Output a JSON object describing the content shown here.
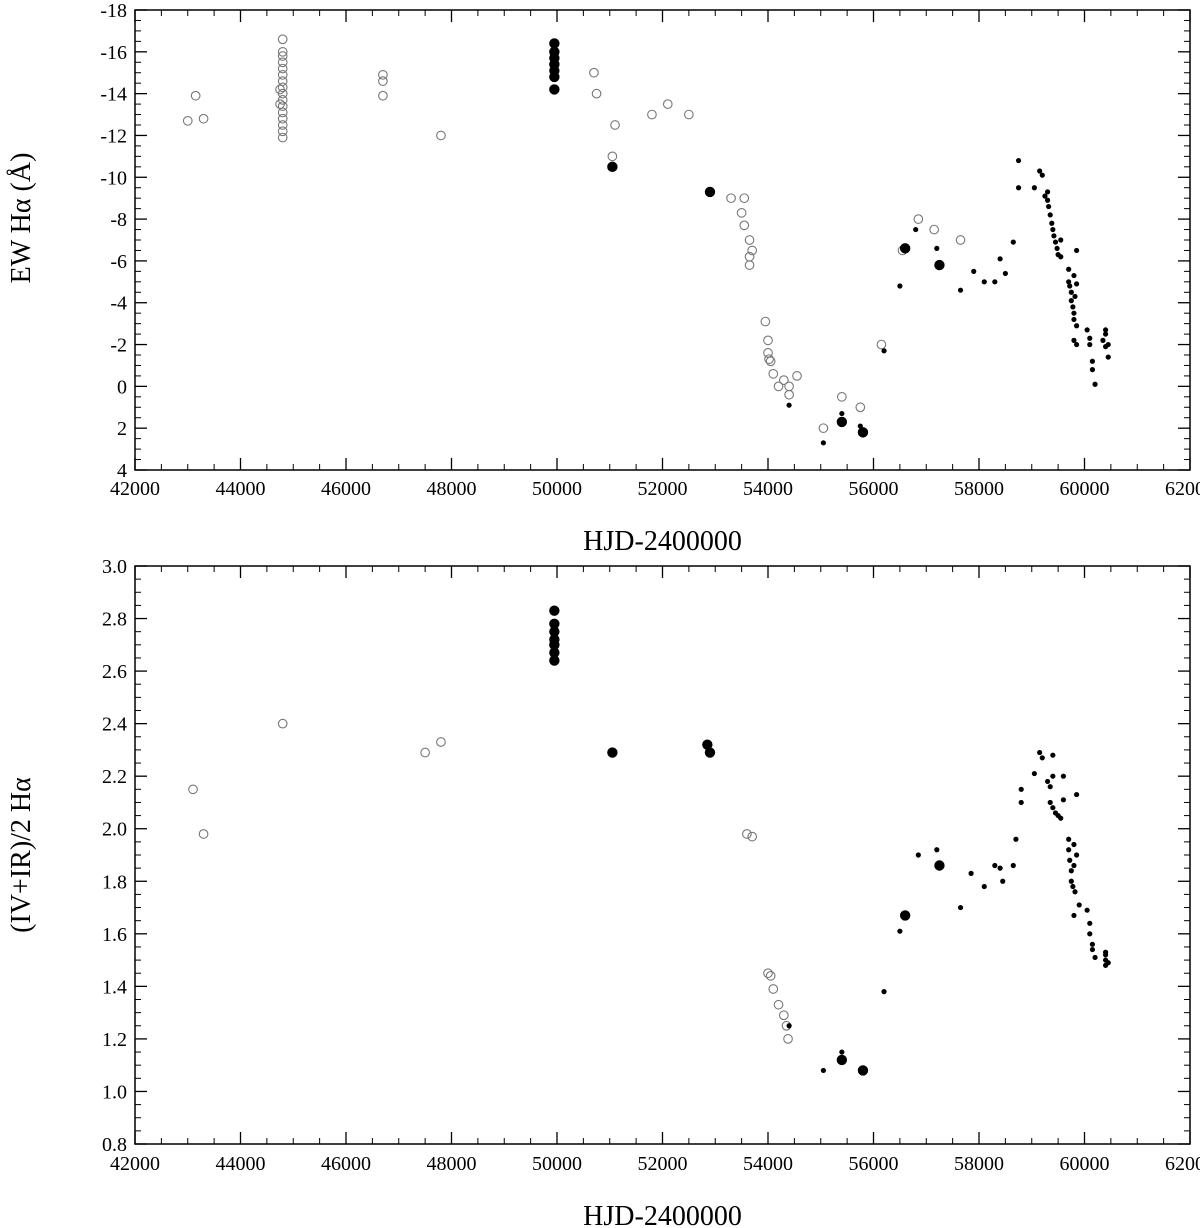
{
  "chart_data": [
    {
      "type": "scatter",
      "xlabel": "HJD-2400000",
      "ylabel": "EW Hα (Å)",
      "xlim": [
        42000,
        62000
      ],
      "ylim": [
        4,
        -18
      ],
      "y_axis_inverted": true,
      "grid": false,
      "x_ticks": [
        "42000",
        "44000",
        "46000",
        "48000",
        "50000",
        "52000",
        "54000",
        "56000",
        "58000",
        "60000",
        "62000"
      ],
      "y_ticks": [
        "4",
        "2",
        "0",
        "-2",
        "-4",
        "-6",
        "-8",
        "-10",
        "-12",
        "-14",
        "-16",
        "-18"
      ],
      "series": [
        {
          "marker": "open-circle",
          "points": [
            [
              43000,
              -12.7
            ],
            [
              43150,
              -13.9
            ],
            [
              43300,
              -12.8
            ],
            [
              44800,
              -11.9
            ],
            [
              44800,
              -12.2
            ],
            [
              44800,
              -12.5
            ],
            [
              44800,
              -12.8
            ],
            [
              44800,
              -13.1
            ],
            [
              44800,
              -13.4
            ],
            [
              44800,
              -13.7
            ],
            [
              44800,
              -14.0
            ],
            [
              44800,
              -14.3
            ],
            [
              44800,
              -14.6
            ],
            [
              44800,
              -14.9
            ],
            [
              44800,
              -15.2
            ],
            [
              44800,
              -15.5
            ],
            [
              44800,
              -15.8
            ],
            [
              44800,
              -16.0
            ],
            [
              44800,
              -16.6
            ],
            [
              44750,
              -14.2
            ],
            [
              44750,
              -13.5
            ],
            [
              46700,
              -13.9
            ],
            [
              46700,
              -14.6
            ],
            [
              46700,
              -14.9
            ],
            [
              47800,
              -12.0
            ],
            [
              50700,
              -15.0
            ],
            [
              50750,
              -14.0
            ],
            [
              51050,
              -11.0
            ],
            [
              51100,
              -12.5
            ],
            [
              51800,
              -13.0
            ],
            [
              52100,
              -13.5
            ],
            [
              52500,
              -13.0
            ],
            [
              53300,
              -9.0
            ],
            [
              53500,
              -8.3
            ],
            [
              53550,
              -9.0
            ],
            [
              53550,
              -7.7
            ],
            [
              53650,
              -7.0
            ],
            [
              53700,
              -6.5
            ],
            [
              53650,
              -6.2
            ],
            [
              53650,
              -5.8
            ],
            [
              53950,
              -3.1
            ],
            [
              54000,
              -2.2
            ],
            [
              54000,
              -1.6
            ],
            [
              54020,
              -1.3
            ],
            [
              54050,
              -1.2
            ],
            [
              54100,
              -0.6
            ],
            [
              54200,
              0.0
            ],
            [
              54300,
              -0.3
            ],
            [
              54400,
              0.0
            ],
            [
              54400,
              0.4
            ],
            [
              54550,
              -0.5
            ],
            [
              55050,
              2.0
            ],
            [
              55400,
              0.5
            ],
            [
              55750,
              1.0
            ],
            [
              56150,
              -2.0
            ],
            [
              56550,
              -6.5
            ],
            [
              56850,
              -8.0
            ],
            [
              57150,
              -7.5
            ],
            [
              57650,
              -7.0
            ]
          ]
        },
        {
          "marker": "filled-circle",
          "points": [
            [
              49950,
              -14.2
            ],
            [
              49950,
              -14.8
            ],
            [
              49950,
              -15.1
            ],
            [
              49950,
              -15.4
            ],
            [
              49950,
              -15.7
            ],
            [
              49950,
              -16.0
            ],
            [
              49950,
              -16.4
            ],
            [
              51050,
              -10.5
            ],
            [
              52900,
              -9.3
            ],
            [
              55400,
              1.7
            ],
            [
              55800,
              2.2
            ],
            [
              56600,
              -6.6
            ],
            [
              57250,
              -5.8
            ]
          ]
        },
        {
          "marker": "small-dot",
          "points": [
            [
              54400,
              0.9
            ],
            [
              55050,
              2.7
            ],
            [
              55400,
              1.3
            ],
            [
              55750,
              1.9
            ],
            [
              56200,
              -1.7
            ],
            [
              56500,
              -4.8
            ],
            [
              56800,
              -7.5
            ],
            [
              57200,
              -6.6
            ],
            [
              57650,
              -4.6
            ],
            [
              57900,
              -5.5
            ],
            [
              58100,
              -5.0
            ],
            [
              58300,
              -5.0
            ],
            [
              58400,
              -6.1
            ],
            [
              58500,
              -5.4
            ],
            [
              58650,
              -6.9
            ],
            [
              58750,
              -10.8
            ],
            [
              58750,
              -9.5
            ],
            [
              59050,
              -9.5
            ],
            [
              59150,
              -10.3
            ],
            [
              59200,
              -10.1
            ],
            [
              59250,
              -9.1
            ],
            [
              59300,
              -9.3
            ],
            [
              59300,
              -8.9
            ],
            [
              59320,
              -8.6
            ],
            [
              59350,
              -8.2
            ],
            [
              59380,
              -7.8
            ],
            [
              59400,
              -7.5
            ],
            [
              59420,
              -7.2
            ],
            [
              59450,
              -6.9
            ],
            [
              59480,
              -6.6
            ],
            [
              59500,
              -6.3
            ],
            [
              59550,
              -7.0
            ],
            [
              59550,
              -6.2
            ],
            [
              59700,
              -5.6
            ],
            [
              59700,
              -5.0
            ],
            [
              59720,
              -4.8
            ],
            [
              59750,
              -4.5
            ],
            [
              59750,
              -4.1
            ],
            [
              59780,
              -3.8
            ],
            [
              59800,
              -3.5
            ],
            [
              59800,
              -5.3
            ],
            [
              59820,
              -4.3
            ],
            [
              59850,
              -6.5
            ],
            [
              59850,
              -4.9
            ],
            [
              59800,
              -3.2
            ],
            [
              59850,
              -2.9
            ],
            [
              59800,
              -2.2
            ],
            [
              59850,
              -2.0
            ],
            [
              60050,
              -2.7
            ],
            [
              60100,
              -2.3
            ],
            [
              60100,
              -2.0
            ],
            [
              60150,
              -1.2
            ],
            [
              60150,
              -0.8
            ],
            [
              60200,
              -0.1
            ],
            [
              60350,
              -2.2
            ],
            [
              60400,
              -1.9
            ],
            [
              60400,
              -2.5
            ],
            [
              60400,
              -2.7
            ],
            [
              60450,
              -1.4
            ],
            [
              60450,
              -2.0
            ]
          ]
        }
      ]
    },
    {
      "type": "scatter",
      "xlabel": "HJD-2400000",
      "ylabel": "(IV+IR)/2 Hα",
      "xlim": [
        42000,
        62000
      ],
      "ylim": [
        0.8,
        3.0
      ],
      "grid": false,
      "x_ticks": [
        "42000",
        "44000",
        "46000",
        "48000",
        "50000",
        "52000",
        "54000",
        "56000",
        "58000",
        "60000",
        "62000"
      ],
      "y_ticks": [
        "0.8",
        "1.0",
        "1.2",
        "1.4",
        "1.6",
        "1.8",
        "2.0",
        "2.2",
        "2.4",
        "2.6",
        "2.8",
        "3.0"
      ],
      "series": [
        {
          "marker": "open-circle",
          "points": [
            [
              43100,
              2.15
            ],
            [
              43300,
              1.98
            ],
            [
              44800,
              2.4
            ],
            [
              47500,
              2.29
            ],
            [
              47800,
              2.33
            ],
            [
              53600,
              1.98
            ],
            [
              53700,
              1.97
            ],
            [
              54000,
              1.45
            ],
            [
              54050,
              1.44
            ],
            [
              54100,
              1.39
            ],
            [
              54200,
              1.33
            ],
            [
              54300,
              1.29
            ],
            [
              54350,
              1.25
            ],
            [
              54380,
              1.2
            ]
          ]
        },
        {
          "marker": "filled-circle",
          "points": [
            [
              49950,
              2.64
            ],
            [
              49950,
              2.67
            ],
            [
              49950,
              2.7
            ],
            [
              49950,
              2.72
            ],
            [
              49950,
              2.75
            ],
            [
              49950,
              2.78
            ],
            [
              49950,
              2.83
            ],
            [
              51050,
              2.29
            ],
            [
              52850,
              2.32
            ],
            [
              52900,
              2.29
            ],
            [
              55400,
              1.12
            ],
            [
              55800,
              1.08
            ],
            [
              56600,
              1.67
            ],
            [
              57250,
              1.86
            ]
          ]
        },
        {
          "marker": "small-dot",
          "points": [
            [
              54400,
              1.25
            ],
            [
              55050,
              1.08
            ],
            [
              55400,
              1.15
            ],
            [
              56200,
              1.38
            ],
            [
              56500,
              1.61
            ],
            [
              56850,
              1.9
            ],
            [
              57200,
              1.92
            ],
            [
              57650,
              1.7
            ],
            [
              57850,
              1.83
            ],
            [
              58100,
              1.78
            ],
            [
              58300,
              1.86
            ],
            [
              58400,
              1.85
            ],
            [
              58450,
              1.8
            ],
            [
              58650,
              1.86
            ],
            [
              58700,
              1.96
            ],
            [
              58800,
              2.15
            ],
            [
              58800,
              2.1
            ],
            [
              59050,
              2.21
            ],
            [
              59150,
              2.29
            ],
            [
              59200,
              2.27
            ],
            [
              59300,
              2.18
            ],
            [
              59350,
              2.16
            ],
            [
              59400,
              2.28
            ],
            [
              59400,
              2.2
            ],
            [
              59350,
              2.1
            ],
            [
              59400,
              2.08
            ],
            [
              59450,
              2.06
            ],
            [
              59500,
              2.05
            ],
            [
              59550,
              2.04
            ],
            [
              59600,
              2.2
            ],
            [
              59600,
              2.11
            ],
            [
              59700,
              1.96
            ],
            [
              59700,
              1.92
            ],
            [
              59720,
              1.88
            ],
            [
              59750,
              1.84
            ],
            [
              59750,
              1.8
            ],
            [
              59780,
              1.78
            ],
            [
              59800,
              1.94
            ],
            [
              59800,
              1.86
            ],
            [
              59820,
              1.76
            ],
            [
              59850,
              2.13
            ],
            [
              59850,
              1.9
            ],
            [
              59800,
              1.67
            ],
            [
              59900,
              1.71
            ],
            [
              60050,
              1.69
            ],
            [
              60100,
              1.64
            ],
            [
              60100,
              1.6
            ],
            [
              60150,
              1.56
            ],
            [
              60150,
              1.54
            ],
            [
              60200,
              1.51
            ],
            [
              60400,
              1.48
            ],
            [
              60400,
              1.5
            ],
            [
              60400,
              1.52
            ],
            [
              60400,
              1.53
            ],
            [
              60450,
              1.49
            ]
          ]
        }
      ]
    }
  ]
}
